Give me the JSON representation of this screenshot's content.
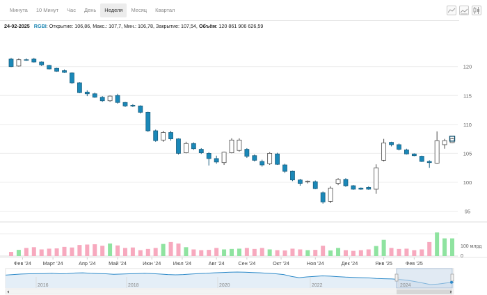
{
  "tabs": [
    "Минута",
    "10 Минут",
    "Час",
    "День",
    "Неделя",
    "Месяц",
    "Квартал"
  ],
  "active_tab": "Неделя",
  "view_icons": [
    "area-chart-icon",
    "line-chart-icon",
    "candlestick-chart-icon"
  ],
  "info": {
    "date": "24-02-2025",
    "ticker": "RGBI",
    "text": ": Открытие: 106,86, Макс.: 107,7, Мин.: 106,78, Закрытие: 107,54, ",
    "volume_label": "Объём",
    "volume_value": ": 120 861 906 626,59"
  },
  "colors": {
    "up_fill": "#ffffff",
    "up_stroke": "#4a4a4a",
    "down_fill": "#1a88b8",
    "down_stroke": "#1a5f80",
    "vol_up": "#8fe3a0",
    "vol_down": "#f7a9be",
    "last_price_marker": "#0f4f6c",
    "navigator_line": "#2d8ac9",
    "navigator_fill": "#e4eef7",
    "navigator_window": "#c9d8ea"
  },
  "chart_data": {
    "type": "candlestick",
    "price_axis": {
      "ticks": [
        95,
        100,
        105,
        110,
        115,
        120
      ],
      "range": [
        93.5,
        125.5
      ]
    },
    "volume_axis": {
      "label": "100 млрд",
      "zero_label": "0"
    },
    "x_labels": [
      "Фев '24",
      "Март '24",
      "Апр '24",
      "Май '24",
      "Июн '24",
      "Июл '24",
      "Авг '24",
      "Сен '24",
      "Окт '24",
      "Ноя '24",
      "Дек '24",
      "Янв '25",
      "Фев '25"
    ],
    "x_label_positions": [
      1.5,
      5.5,
      10,
      14,
      18.5,
      22.5,
      27,
      31,
      35.5,
      40,
      44.5,
      49,
      53
    ],
    "candles": [
      {
        "o": 121.3,
        "h": 121.5,
        "l": 119.9,
        "c": 120.0
      },
      {
        "o": 120.1,
        "h": 121.4,
        "l": 120.0,
        "c": 121.2
      },
      {
        "o": 121.2,
        "h": 121.4,
        "l": 121.0,
        "c": 121.1
      },
      {
        "o": 121.3,
        "h": 121.5,
        "l": 120.7,
        "c": 120.8
      },
      {
        "o": 120.8,
        "h": 120.9,
        "l": 120.1,
        "c": 120.3
      },
      {
        "o": 120.2,
        "h": 120.3,
        "l": 119.5,
        "c": 119.6
      },
      {
        "o": 119.7,
        "h": 119.8,
        "l": 119.1,
        "c": 119.2
      },
      {
        "o": 119.3,
        "h": 119.5,
        "l": 118.9,
        "c": 119.0
      },
      {
        "o": 118.9,
        "h": 119.0,
        "l": 117.0,
        "c": 117.2
      },
      {
        "o": 117.2,
        "h": 117.3,
        "l": 115.4,
        "c": 115.5
      },
      {
        "o": 115.6,
        "h": 115.9,
        "l": 114.9,
        "c": 115.3
      },
      {
        "o": 115.3,
        "h": 115.5,
        "l": 114.6,
        "c": 114.7
      },
      {
        "o": 114.7,
        "h": 114.9,
        "l": 113.9,
        "c": 114.1
      },
      {
        "o": 114.1,
        "h": 115.0,
        "l": 113.9,
        "c": 114.9
      },
      {
        "o": 115.0,
        "h": 115.3,
        "l": 113.6,
        "c": 113.8
      },
      {
        "o": 113.8,
        "h": 113.9,
        "l": 113.0,
        "c": 113.2
      },
      {
        "o": 113.3,
        "h": 113.5,
        "l": 113.0,
        "c": 113.2
      },
      {
        "o": 113.2,
        "h": 113.3,
        "l": 111.9,
        "c": 112.1
      },
      {
        "o": 112.1,
        "h": 112.2,
        "l": 108.7,
        "c": 108.9
      },
      {
        "o": 108.9,
        "h": 109.1,
        "l": 107.0,
        "c": 107.2
      },
      {
        "o": 107.3,
        "h": 108.9,
        "l": 107.0,
        "c": 108.6
      },
      {
        "o": 108.6,
        "h": 108.9,
        "l": 107.2,
        "c": 107.5
      },
      {
        "o": 107.5,
        "h": 107.6,
        "l": 104.8,
        "c": 105.0
      },
      {
        "o": 105.1,
        "h": 107.0,
        "l": 105.0,
        "c": 106.7
      },
      {
        "o": 106.7,
        "h": 106.9,
        "l": 105.6,
        "c": 105.8
      },
      {
        "o": 105.7,
        "h": 105.9,
        "l": 104.9,
        "c": 105.1
      },
      {
        "o": 105.0,
        "h": 105.2,
        "l": 102.9,
        "c": 104.1
      },
      {
        "o": 104.1,
        "h": 104.6,
        "l": 103.2,
        "c": 103.5
      },
      {
        "o": 103.4,
        "h": 105.3,
        "l": 103.0,
        "c": 105.2
      },
      {
        "o": 105.1,
        "h": 107.6,
        "l": 105.0,
        "c": 107.3
      },
      {
        "o": 105.5,
        "h": 107.6,
        "l": 105.3,
        "c": 107.3
      },
      {
        "o": 105.7,
        "h": 105.9,
        "l": 104.2,
        "c": 104.5
      },
      {
        "o": 104.6,
        "h": 104.8,
        "l": 103.6,
        "c": 103.8
      },
      {
        "o": 103.6,
        "h": 103.9,
        "l": 102.7,
        "c": 103.0
      },
      {
        "o": 103.2,
        "h": 105.2,
        "l": 103.0,
        "c": 105.0
      },
      {
        "o": 104.9,
        "h": 105.1,
        "l": 103.0,
        "c": 103.1
      },
      {
        "o": 103.0,
        "h": 103.2,
        "l": 101.6,
        "c": 101.9
      },
      {
        "o": 101.9,
        "h": 102.0,
        "l": 100.2,
        "c": 100.4
      },
      {
        "o": 100.4,
        "h": 100.6,
        "l": 99.4,
        "c": 99.8
      },
      {
        "o": 100.1,
        "h": 100.3,
        "l": 99.8,
        "c": 100.2
      },
      {
        "o": 100.1,
        "h": 100.3,
        "l": 98.8,
        "c": 98.9
      },
      {
        "o": 98.2,
        "h": 98.4,
        "l": 96.3,
        "c": 96.6
      },
      {
        "o": 96.7,
        "h": 99.3,
        "l": 96.4,
        "c": 99.0
      },
      {
        "o": 99.8,
        "h": 100.7,
        "l": 99.5,
        "c": 100.5
      },
      {
        "o": 100.5,
        "h": 100.7,
        "l": 99.2,
        "c": 99.4
      },
      {
        "o": 99.4,
        "h": 99.5,
        "l": 98.7,
        "c": 98.8
      },
      {
        "o": 99.0,
        "h": 99.1,
        "l": 98.7,
        "c": 98.8
      },
      {
        "o": 99.1,
        "h": 99.3,
        "l": 98.7,
        "c": 98.8
      },
      {
        "o": 98.8,
        "h": 103.1,
        "l": 98.0,
        "c": 102.5
      },
      {
        "o": 103.8,
        "h": 107.5,
        "l": 103.6,
        "c": 106.8
      },
      {
        "o": 106.9,
        "h": 107.0,
        "l": 106.2,
        "c": 106.5
      },
      {
        "o": 106.5,
        "h": 106.7,
        "l": 105.5,
        "c": 105.7
      },
      {
        "o": 105.6,
        "h": 105.8,
        "l": 104.8,
        "c": 104.9
      },
      {
        "o": 104.9,
        "h": 105.0,
        "l": 104.5,
        "c": 104.6
      },
      {
        "o": 104.5,
        "h": 104.6,
        "l": 103.5,
        "c": 103.6
      },
      {
        "o": 103.6,
        "h": 103.8,
        "l": 102.5,
        "c": 103.4
      },
      {
        "o": 103.3,
        "h": 108.8,
        "l": 103.2,
        "c": 107.2
      },
      {
        "o": 106.5,
        "h": 107.5,
        "l": 105.8,
        "c": 107.2
      },
      {
        "o": 106.86,
        "h": 107.7,
        "l": 106.78,
        "c": 107.54
      }
    ],
    "volumes": [
      28,
      42,
      55,
      60,
      45,
      50,
      52,
      62,
      58,
      75,
      78,
      80,
      70,
      85,
      72,
      55,
      58,
      40,
      48,
      55,
      82,
      95,
      85,
      60,
      45,
      40,
      42,
      55,
      45,
      48,
      50,
      55,
      48,
      55,
      45,
      40,
      38,
      50,
      45,
      40,
      42,
      70,
      38,
      55,
      40,
      35,
      40,
      45,
      68,
      110,
      55,
      48,
      50,
      40,
      45,
      95,
      160,
      120,
      120
    ],
    "volume_max": 170,
    "navigator": {
      "year_labels": [
        "2016",
        "2018",
        "2020",
        "2022",
        "2024"
      ],
      "series": [
        135,
        137,
        139,
        140,
        140.5,
        141,
        142,
        140,
        141,
        143,
        144,
        142,
        141,
        140,
        138,
        139,
        140,
        141,
        142,
        141,
        139,
        137,
        136,
        137,
        139,
        141,
        142,
        144,
        145,
        146,
        147,
        146,
        145,
        144,
        142,
        140,
        137,
        130,
        125,
        128,
        130,
        132,
        131,
        129,
        127,
        126,
        125,
        124,
        122,
        121,
        120,
        118,
        115,
        110,
        104,
        98,
        100,
        104,
        107
      ]
    }
  }
}
